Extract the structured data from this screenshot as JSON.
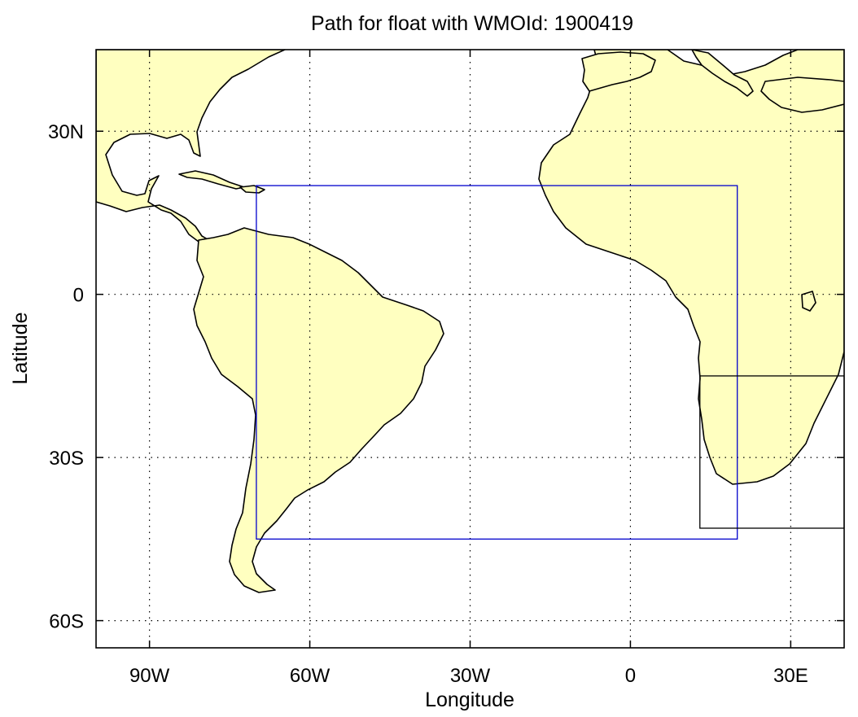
{
  "title": "Path for float with WMOId: 1900419",
  "chart_data": {
    "type": "map",
    "title": "Path for float with WMOId: 1900419",
    "xlabel": "Longitude",
    "ylabel": "Latitude",
    "xlim": [
      -100,
      40
    ],
    "ylim": [
      -65,
      45
    ],
    "grid": true,
    "x_ticks": [
      {
        "value": -90,
        "label": "90W"
      },
      {
        "value": -60,
        "label": "60W"
      },
      {
        "value": -30,
        "label": "30W"
      },
      {
        "value": 0,
        "label": "0"
      },
      {
        "value": 30,
        "label": "30E"
      }
    ],
    "y_ticks": [
      {
        "value": 30,
        "label": "30N"
      },
      {
        "value": 0,
        "label": "0"
      },
      {
        "value": -30,
        "label": "30S"
      },
      {
        "value": -60,
        "label": "60S"
      }
    ],
    "regions": [
      {
        "name": "",
        "color": "#0000cc",
        "lon_min": -70,
        "lon_max": 20,
        "lat_min": -45,
        "lat_max": 20
      },
      {
        "name": "",
        "color": "#000000",
        "lon_min": 13,
        "lon_max": 40,
        "lat_min": -43,
        "lat_max": -15
      }
    ],
    "float_path": [],
    "land_color": "#ffffc0",
    "ocean_color": "#ffffff"
  }
}
